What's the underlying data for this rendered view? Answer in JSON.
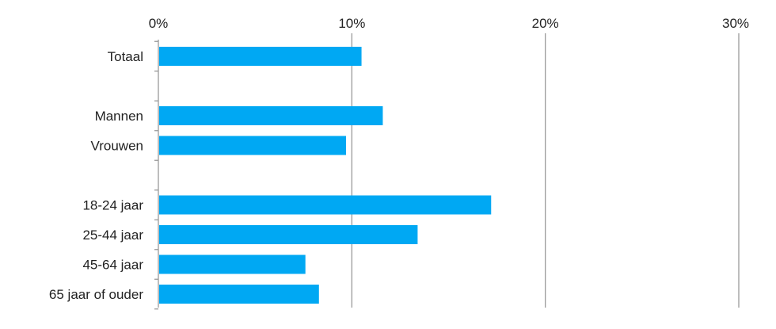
{
  "chart_data": {
    "type": "bar",
    "orientation": "horizontal",
    "categories": [
      "Totaal",
      "",
      "Mannen",
      "Vrouwen",
      "",
      "18-24 jaar",
      "25-44 jaar",
      "45-64 jaar",
      "65 jaar of ouder"
    ],
    "values": [
      10.5,
      null,
      11.6,
      9.7,
      null,
      17.2,
      13.4,
      7.6,
      8.3
    ],
    "x_ticks": [
      "0%",
      "10%",
      "20%",
      "30%"
    ],
    "xlim": [
      0,
      30
    ],
    "x_axis_position": "top",
    "grid": true,
    "bar_color": "#00a8f3",
    "grid_color": "#9a9a9a",
    "title": "",
    "xlabel": "",
    "ylabel": ""
  }
}
